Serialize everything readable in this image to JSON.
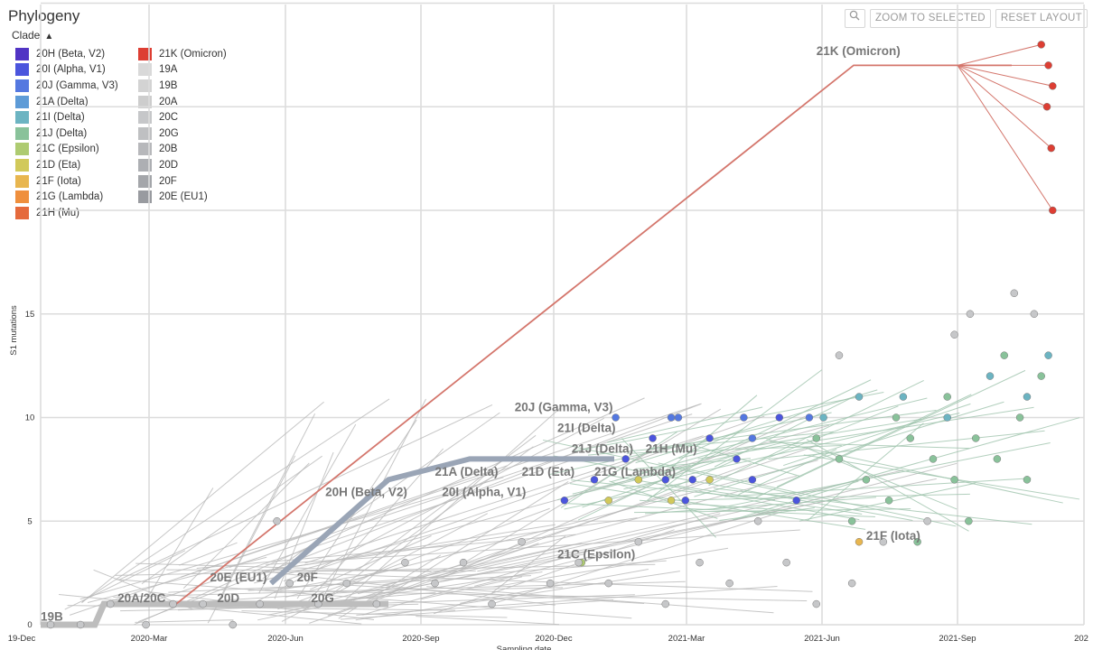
{
  "panel": {
    "title": "Phylogeny"
  },
  "toolbar": {
    "zoom_icon": "magnifier-icon",
    "zoom_label": "ZOOM TO SELECTED",
    "reset_label": "RESET LAYOUT"
  },
  "legend": {
    "title": "Clade",
    "toggle_icon": "chevron-up-icon",
    "items": [
      {
        "label": "20H (Beta, V2)",
        "color": "#5134c4"
      },
      {
        "label": "21K (Omicron)",
        "color": "#dd3e33"
      },
      {
        "label": "20I (Alpha, V1)",
        "color": "#4b55dd"
      },
      {
        "label": "19A",
        "color": "#d9d9d9"
      },
      {
        "label": "20J (Gamma, V3)",
        "color": "#5478e0"
      },
      {
        "label": "19B",
        "color": "#d3d3d3"
      },
      {
        "label": "21A (Delta)",
        "color": "#5d9bd7"
      },
      {
        "label": "20A",
        "color": "#cdcdcd"
      },
      {
        "label": "21I (Delta)",
        "color": "#6cb4c2"
      },
      {
        "label": "20C",
        "color": "#c6c7c9"
      },
      {
        "label": "21J (Delta)",
        "color": "#89c29a"
      },
      {
        "label": "20G",
        "color": "#bfc0c2"
      },
      {
        "label": "21C (Epsilon)",
        "color": "#aecb71"
      },
      {
        "label": "20B",
        "color": "#b7b8bb"
      },
      {
        "label": "21D (Eta)",
        "color": "#d1c95a"
      },
      {
        "label": "20D",
        "color": "#adafb3"
      },
      {
        "label": "21F (Iota)",
        "color": "#e8b64f"
      },
      {
        "label": "20F",
        "color": "#a4a6aa"
      },
      {
        "label": "21G (Lambda)",
        "color": "#ef8f3d"
      },
      {
        "label": "20E (EU1)",
        "color": "#999ba0"
      },
      {
        "label": "21H (Mu)",
        "color": "#e56a3c"
      }
    ]
  },
  "chart_data": {
    "type": "scatter",
    "xlabel": "Sampling date",
    "ylabel": "S1 mutations",
    "x_ticks": [
      "19-Dec",
      "2020-Mar",
      "2020-Jun",
      "2020-Sep",
      "2020-Dec",
      "2021-Mar",
      "2021-Jun",
      "2021-Sep",
      "202"
    ],
    "y_ticks": [
      0,
      5,
      10,
      15
    ],
    "ylim": [
      0,
      30
    ],
    "grid": true,
    "clade_labels": [
      {
        "text": "21K (Omicron)",
        "date": "2021-06-15",
        "y": 27.5
      },
      {
        "text": "20J (Gamma, V3)",
        "date": "2020-11-15",
        "y": 10.3
      },
      {
        "text": "21I (Delta)",
        "date": "2020-12-15",
        "y": 9.3
      },
      {
        "text": "21J (Delta)",
        "date": "2020-12-25",
        "y": 8.3
      },
      {
        "text": "21H (Mu)",
        "date": "2021-02-15",
        "y": 8.3
      },
      {
        "text": "21A (Delta)",
        "date": "2020-09-20",
        "y": 7.2
      },
      {
        "text": "21D (Eta)",
        "date": "2020-11-20",
        "y": 7.2
      },
      {
        "text": "21G (Lambda)",
        "date": "2021-01-10",
        "y": 7.2
      },
      {
        "text": "20H (Beta, V2)",
        "date": "2020-07-05",
        "y": 6.2
      },
      {
        "text": "20I (Alpha, V1)",
        "date": "2020-09-25",
        "y": 6.2
      },
      {
        "text": "21F (Iota)",
        "date": "2021-07-20",
        "y": 4.1
      },
      {
        "text": "21C (Epsilon)",
        "date": "2020-12-15",
        "y": 3.2
      },
      {
        "text": "20E (EU1)",
        "date": "2020-04-15",
        "y": 2.1
      },
      {
        "text": "20F",
        "date": "2020-06-15",
        "y": 2.1
      },
      {
        "text": "20D",
        "date": "2020-04-20",
        "y": 1.1
      },
      {
        "text": "20G",
        "date": "2020-06-25",
        "y": 1.1
      },
      {
        "text": "20A/20C",
        "date": "2020-02-10",
        "y": 1.1
      },
      {
        "text": "19B",
        "date": "2019-12-18",
        "y": 0.2
      }
    ],
    "series": [
      {
        "name": "21K (Omicron)",
        "color": "#dd3e33",
        "points": [
          [
            "2021-11-20",
            28
          ],
          [
            "2021-11-25",
            27
          ],
          [
            "2021-11-28",
            26
          ],
          [
            "2021-11-24",
            25
          ],
          [
            "2021-11-27",
            23
          ],
          [
            "2021-11-28",
            20
          ]
        ]
      },
      {
        "name": "20I (Alpha, V1)",
        "color": "#4b55dd",
        "points": [
          [
            "2021-01-10",
            7
          ],
          [
            "2021-02-01",
            8
          ],
          [
            "2021-03-01",
            7
          ],
          [
            "2021-03-15",
            6
          ],
          [
            "2021-04-01",
            9
          ],
          [
            "2021-05-01",
            7
          ],
          [
            "2021-06-01",
            6
          ],
          [
            "2021-04-20",
            8
          ],
          [
            "2021-02-20",
            9
          ],
          [
            "2021-05-20",
            10
          ],
          [
            "2020-12-20",
            6
          ],
          [
            "2021-03-20",
            7
          ]
        ]
      },
      {
        "name": "20J (Gamma, V3)",
        "color": "#5478e0",
        "points": [
          [
            "2021-01-25",
            10
          ],
          [
            "2021-03-10",
            10
          ],
          [
            "2021-04-25",
            10
          ],
          [
            "2021-06-10",
            10
          ],
          [
            "2021-05-01",
            9
          ],
          [
            "2021-03-05",
            10
          ]
        ]
      },
      {
        "name": "21J (Delta)",
        "color": "#89c29a",
        "points": [
          [
            "2021-06-15",
            9
          ],
          [
            "2021-07-01",
            8
          ],
          [
            "2021-07-20",
            7
          ],
          [
            "2021-08-05",
            6
          ],
          [
            "2021-08-20",
            9
          ],
          [
            "2021-09-05",
            8
          ],
          [
            "2021-09-20",
            7
          ],
          [
            "2021-10-05",
            9
          ],
          [
            "2021-10-20",
            8
          ],
          [
            "2021-11-05",
            10
          ],
          [
            "2021-11-20",
            12
          ],
          [
            "2021-10-25",
            13
          ],
          [
            "2021-09-15",
            11
          ],
          [
            "2021-08-10",
            10
          ],
          [
            "2021-07-10",
            5
          ],
          [
            "2021-08-25",
            4
          ],
          [
            "2021-09-30",
            5
          ],
          [
            "2021-11-10",
            7
          ]
        ]
      },
      {
        "name": "21I (Delta)",
        "color": "#6cb4c2",
        "points": [
          [
            "2021-06-20",
            10
          ],
          [
            "2021-07-15",
            11
          ],
          [
            "2021-08-15",
            11
          ],
          [
            "2021-09-15",
            10
          ],
          [
            "2021-10-15",
            12
          ],
          [
            "2021-11-10",
            11
          ],
          [
            "2021-11-25",
            13
          ]
        ]
      },
      {
        "name": "21D (Eta)",
        "color": "#d1c95a",
        "points": [
          [
            "2021-01-20",
            6
          ],
          [
            "2021-02-10",
            7
          ],
          [
            "2021-03-05",
            6
          ],
          [
            "2021-04-01",
            7
          ]
        ]
      },
      {
        "name": "21F (Iota)",
        "color": "#e8b64f",
        "points": [
          [
            "2021-07-15",
            4
          ]
        ]
      },
      {
        "name": "21C (Epsilon)",
        "color": "#aecb71",
        "points": [
          [
            "2021-01-01",
            3
          ]
        ]
      },
      {
        "name": "19A/20A/20B/20C/20D/20E/20F/20G",
        "color": "#c6c7c9",
        "points": [
          [
            "2019-12-25",
            0
          ],
          [
            "2020-01-15",
            0
          ],
          [
            "2020-02-05",
            1
          ],
          [
            "2020-03-01",
            0
          ],
          [
            "2020-03-20",
            1
          ],
          [
            "2020-04-10",
            1
          ],
          [
            "2020-05-01",
            0
          ],
          [
            "2020-05-20",
            1
          ],
          [
            "2020-06-10",
            2
          ],
          [
            "2020-06-30",
            1
          ],
          [
            "2020-07-20",
            2
          ],
          [
            "2020-08-10",
            1
          ],
          [
            "2020-08-30",
            3
          ],
          [
            "2020-09-20",
            2
          ],
          [
            "2020-10-10",
            3
          ],
          [
            "2020-10-30",
            1
          ],
          [
            "2020-11-20",
            4
          ],
          [
            "2020-12-10",
            2
          ],
          [
            "2020-12-30",
            3
          ],
          [
            "2021-01-20",
            2
          ],
          [
            "2021-02-10",
            4
          ],
          [
            "2021-03-01",
            1
          ],
          [
            "2021-03-25",
            3
          ],
          [
            "2021-04-15",
            2
          ],
          [
            "2021-05-05",
            5
          ],
          [
            "2021-05-25",
            3
          ],
          [
            "2021-06-15",
            1
          ],
          [
            "2021-07-10",
            2
          ],
          [
            "2021-08-01",
            4
          ],
          [
            "2021-09-01",
            5
          ],
          [
            "2021-10-01",
            15
          ],
          [
            "2021-11-01",
            16
          ],
          [
            "2021-11-15",
            15
          ],
          [
            "2021-09-20",
            14
          ],
          [
            "2021-07-01",
            13
          ],
          [
            "2020-06-01",
            5
          ]
        ]
      }
    ]
  }
}
